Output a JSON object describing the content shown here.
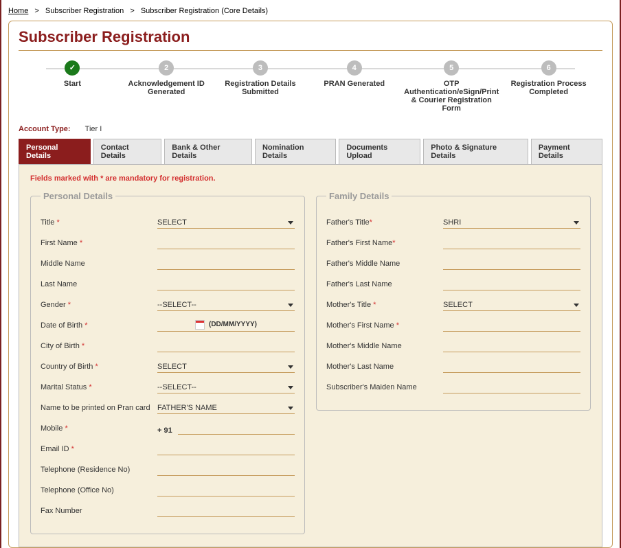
{
  "breadcrumb": {
    "home": "Home",
    "l1": "Subscriber Registration",
    "l2": "Subscriber Registration (Core Details)"
  },
  "title": "Subscriber Registration",
  "steps": [
    {
      "num": "✓",
      "label": "Start",
      "active": true
    },
    {
      "num": "2",
      "label": "Acknowledgement ID Generated",
      "active": false
    },
    {
      "num": "3",
      "label": "Registration Details Submitted",
      "active": false
    },
    {
      "num": "4",
      "label": "PRAN Generated",
      "active": false
    },
    {
      "num": "5",
      "label": "OTP Authentication/eSign/Print & Courier Registration Form",
      "active": false
    },
    {
      "num": "6",
      "label": "Registration Process Completed",
      "active": false
    }
  ],
  "account": {
    "label": "Account Type:",
    "value": "Tier I"
  },
  "tabs": [
    "Personal Details",
    "Contact Details",
    "Bank & Other Details",
    "Nomination Details",
    "Documents Upload",
    "Photo & Signature Details",
    "Payment Details"
  ],
  "mandatory_note": "Fields marked with * are mandatory for registration.",
  "personal": {
    "legend": "Personal Details",
    "title": {
      "label": "Title",
      "req": true,
      "value": "SELECT"
    },
    "first": {
      "label": "First Name",
      "req": true
    },
    "middle": {
      "label": "Middle Name",
      "req": false
    },
    "last": {
      "label": "Last Name",
      "req": false
    },
    "gender": {
      "label": "Gender",
      "req": true,
      "value": "--SELECT--"
    },
    "dob": {
      "label": "Date of Birth",
      "req": true,
      "format": "(DD/MM/YYYY)"
    },
    "city": {
      "label": "City of Birth",
      "req": true
    },
    "country": {
      "label": "Country of Birth",
      "req": true,
      "value": "SELECT"
    },
    "marital": {
      "label": "Marital Status",
      "req": true,
      "value": "--SELECT--"
    },
    "pranname": {
      "label": "Name to be printed on Pran card",
      "req": false,
      "value": "FATHER'S NAME"
    },
    "mobile": {
      "label": "Mobile",
      "req": true,
      "prefix": "+  91"
    },
    "email": {
      "label": "Email ID",
      "req": true
    },
    "telres": {
      "label": "Telephone (Residence No)",
      "req": false
    },
    "teloff": {
      "label": "Telephone (Office No)",
      "req": false
    },
    "fax": {
      "label": "Fax Number",
      "req": false
    }
  },
  "family": {
    "legend": "Family Details",
    "ftitle": {
      "label": "Father's Title",
      "req": true,
      "value": "SHRI"
    },
    "ffirst": {
      "label": "Father's First Name",
      "req": true
    },
    "fmiddle": {
      "label": "Father's Middle Name",
      "req": false
    },
    "flast": {
      "label": "Father's Last Name",
      "req": false
    },
    "mtitle": {
      "label": "Mother's Title",
      "req": true,
      "value": "SELECT"
    },
    "mfirst": {
      "label": "Mother's First Name",
      "req": true
    },
    "mmiddle": {
      "label": "Mother's Middle Name",
      "req": false
    },
    "mlast": {
      "label": "Mother's Last Name",
      "req": false
    },
    "maiden": {
      "label": "Subscriber's Maiden Name",
      "req": false
    }
  }
}
